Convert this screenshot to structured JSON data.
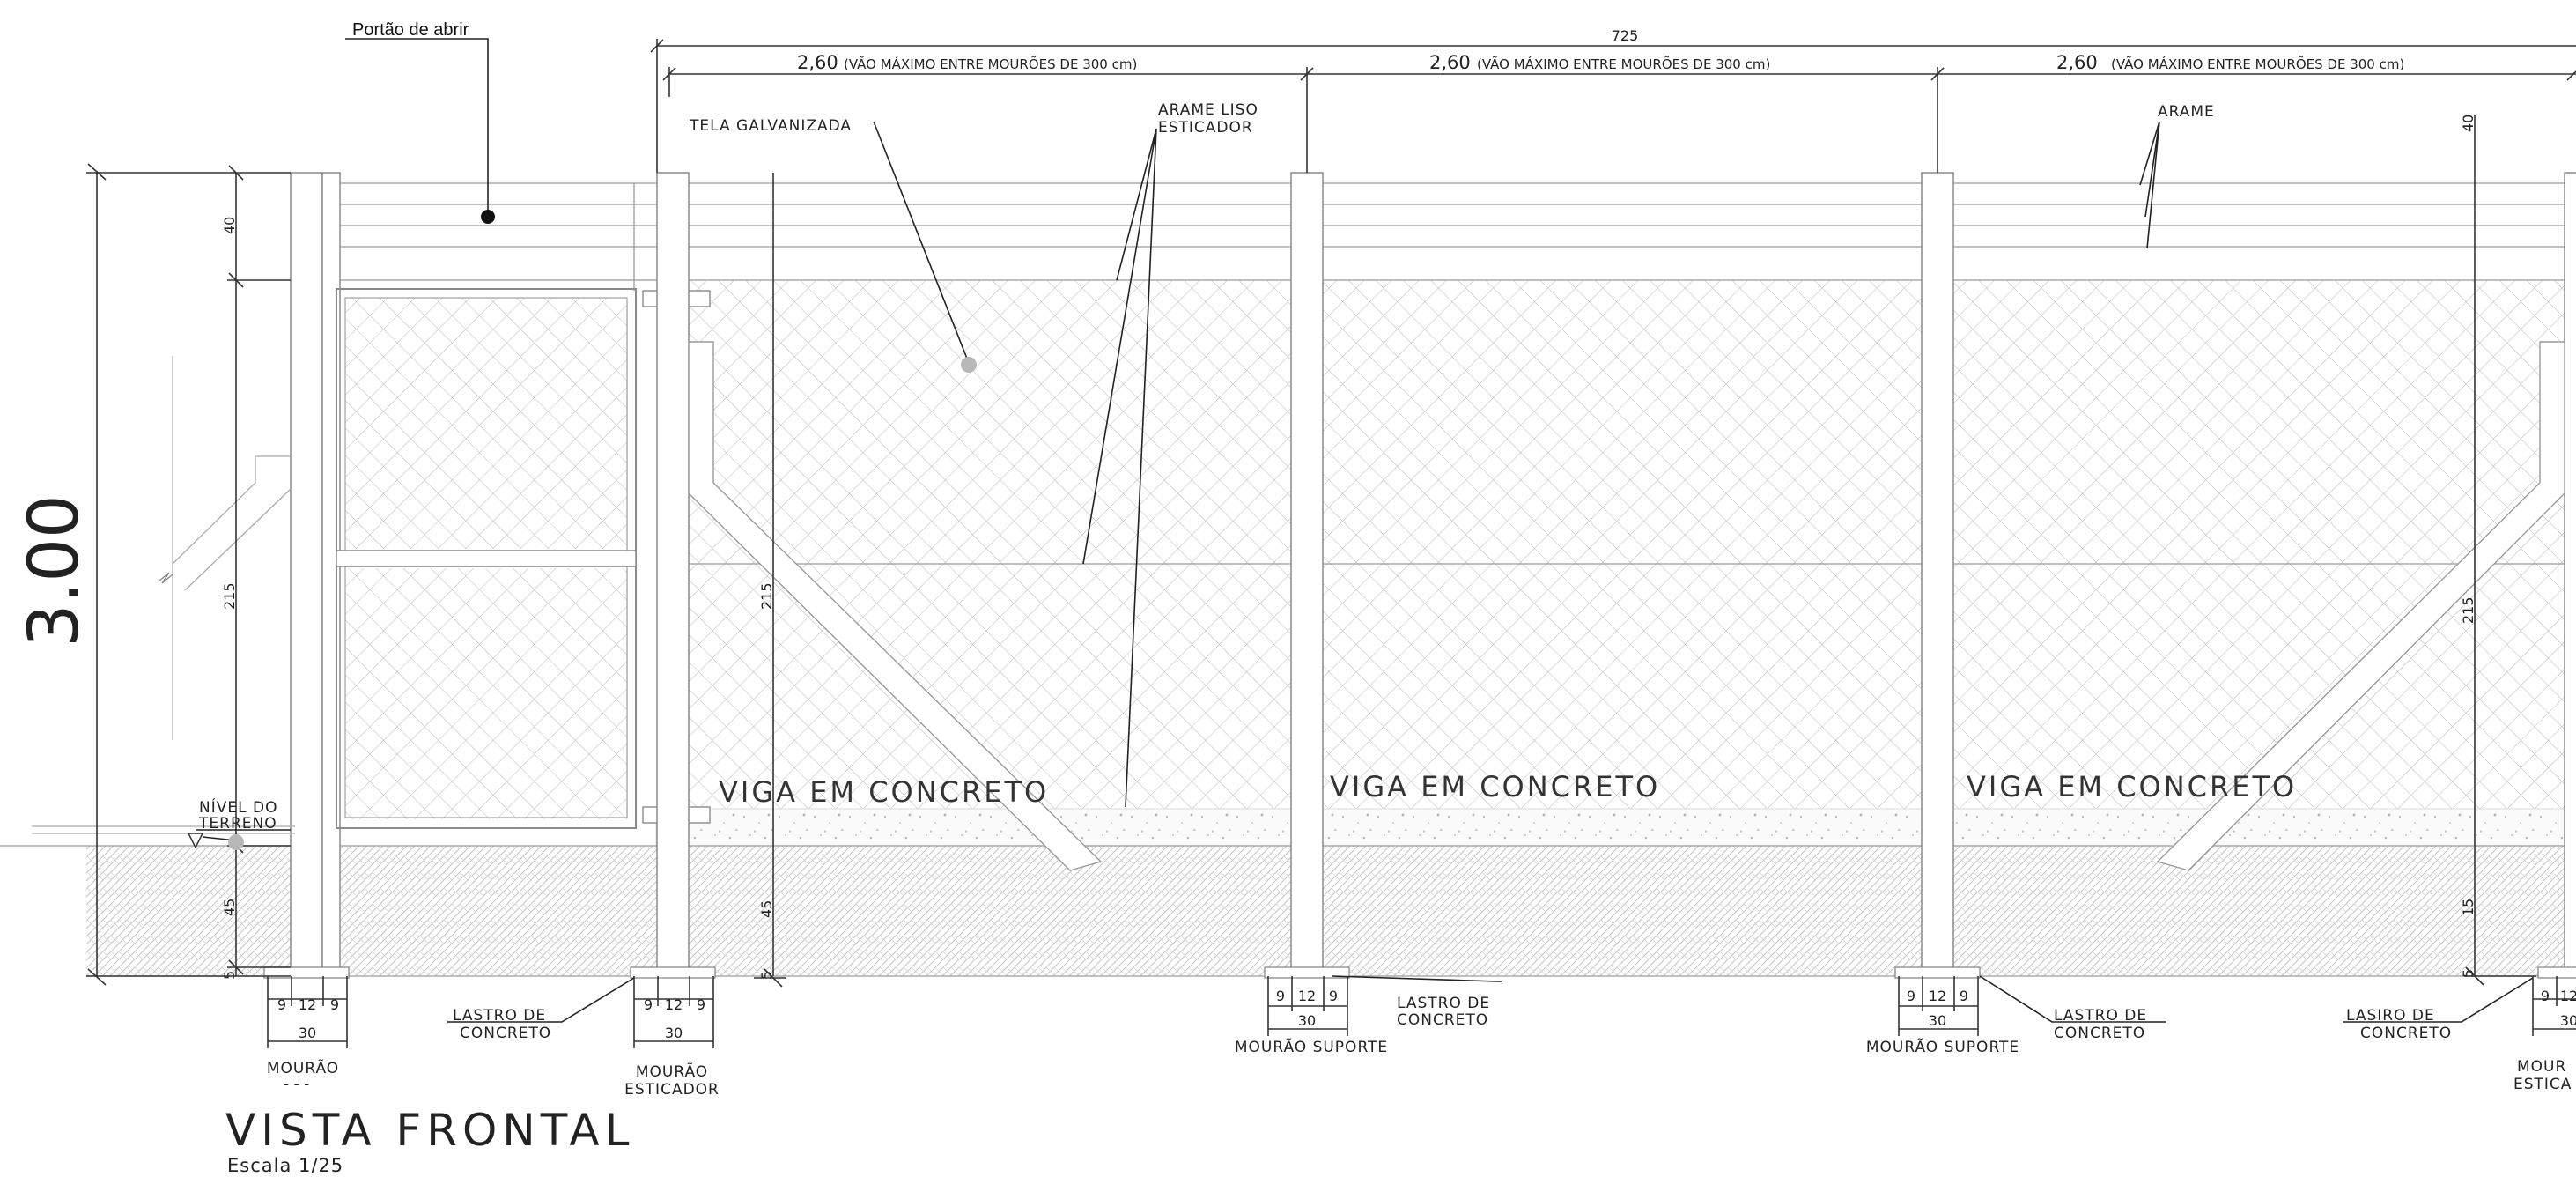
{
  "drawing": {
    "title": "VISTA FRONTAL",
    "scale": "Escala 1/25",
    "total_height": "3.00",
    "total_width": "725",
    "gate_label": "Portão de abrir",
    "spans": [
      {
        "value": "2,60",
        "note": "(VÃO MÁXIMO ENTRE MOURÕES DE 300 cm)"
      },
      {
        "value": "2,60",
        "note": "(VÃO MÁXIMO ENTRE MOURÕES DE 300 cm)"
      },
      {
        "value": "2,60",
        "note": "(VÃO MÁXIMO ENTRE MOURÕES DE 300 cm)"
      }
    ],
    "height_parts": {
      "top": "40",
      "middle": "215",
      "bottom": "45",
      "base": "5",
      "right_bottom": "15"
    },
    "labels": {
      "tela": "TELA GALVANIZADA",
      "arame_liso": "ARAME LISO",
      "esticador": "ESTICADOR",
      "arame": "ARAME",
      "nivel_1": "NÍVEL DO",
      "nivel_2": "TERRENO",
      "viga": "VIGA EM CONCRETO"
    },
    "footing_dims": {
      "a": "9",
      "b": "12",
      "c": "9",
      "total": "30"
    },
    "footings": [
      {
        "name_1": "MOURÃO",
        "name_2": "- - -"
      },
      {
        "name_1": "MOURÃO",
        "name_2": "ESTICADOR"
      },
      {
        "name_1": "MOURÃO SUPORTE",
        "name_2": ""
      },
      {
        "name_1": "MOURÃO SUPORTE",
        "name_2": ""
      },
      {
        "name_1": "MOUR",
        "name_2": "ESTICA"
      }
    ],
    "lastro": [
      {
        "l1": "LASTRO DE",
        "l2": "CONCRETO"
      },
      {
        "l1": "LASTRO DE",
        "l2": "CONCRETO"
      },
      {
        "l1": "LASTRO DE",
        "l2": "CONCRETO"
      },
      {
        "l1": "LASIRO DE",
        "l2": "CONCRETO"
      }
    ]
  }
}
